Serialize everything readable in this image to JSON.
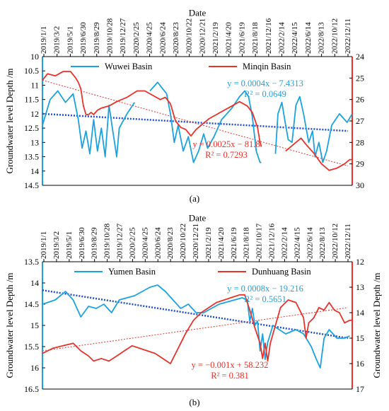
{
  "chart_data": [
    {
      "type": "line",
      "panel_label": "(a)",
      "xlabel": "Date",
      "ylabel_left": "Groundwater level Depth /m",
      "ylabel_right": "",
      "ylim_left": [
        14.5,
        10
      ],
      "ylim_right": [
        30,
        24
      ],
      "y_left_ticks": [
        "10",
        "10.5",
        "11",
        "11.5",
        "12",
        "12.5",
        "13",
        "13.5",
        "14",
        "14.5"
      ],
      "y_right_ticks": [
        "24",
        "25",
        "26",
        "27",
        "28",
        "29",
        "30"
      ],
      "x_ticks": [
        "2019/1/1",
        "2019/3/2",
        "2019/5/1",
        "2019/6/30",
        "2019/8/29",
        "2019/10/28",
        "2019/12/27",
        "2020/2/25",
        "2020/4/25",
        "2020/6/24",
        "2020/8/23",
        "2020/10/22",
        "2020/12/21",
        "2021/2/19",
        "2021/4/20",
        "2021/6/19",
        "2021/8/18",
        "2021/12/16",
        "2022/2/14",
        "2022/4/15",
        "2022/6/14",
        "2022/8/13",
        "2022/10/12",
        "2022/12/11"
      ],
      "legend_position": "top",
      "series": [
        {
          "name": "Wuwei Basin",
          "axis": "left",
          "color": "#1aa3e0",
          "values": [
            [
              0,
              12.4
            ],
            [
              0.3,
              11.5
            ],
            [
              0.6,
              11.2
            ],
            [
              0.9,
              11.6
            ],
            [
              1.2,
              11.3
            ],
            [
              1.4,
              12.2
            ],
            [
              1.55,
              13.2
            ],
            [
              1.7,
              12.6
            ],
            [
              1.85,
              13.4
            ],
            [
              2.0,
              12.2
            ],
            [
              2.15,
              13.3
            ],
            [
              2.3,
              12.5
            ],
            [
              2.45,
              13.5
            ],
            [
              2.6,
              11.7
            ],
            [
              2.75,
              12.6
            ],
            [
              2.9,
              13.5
            ],
            [
              3.0,
              12.5
            ],
            [
              3.3,
              12.0
            ],
            [
              3.6,
              11.6
            ],
            [
              4.2,
              11.2
            ],
            [
              4.5,
              10.9
            ],
            [
              4.85,
              11.3
            ],
            [
              5.0,
              12.0
            ],
            [
              5.15,
              13.0
            ],
            [
              5.3,
              12.4
            ],
            [
              5.5,
              13.3
            ],
            [
              5.7,
              12.8
            ],
            [
              5.9,
              13.7
            ],
            [
              6.1,
              13.3
            ],
            [
              6.3,
              12.7
            ],
            [
              6.45,
              13.2
            ],
            [
              6.7,
              12.8
            ],
            [
              7.0,
              12.2
            ],
            [
              7.4,
              11.8
            ],
            [
              7.7,
              11.4
            ],
            [
              7.9,
              11.2
            ],
            [
              8.05,
              11.4
            ],
            [
              8.2,
              12.1
            ],
            [
              8.35,
              13.3
            ],
            [
              8.5,
              13.7
            ],
            [
              8.55,
              13.7
            ],
            [
              9.1,
              13.4
            ],
            [
              9.2,
              12.0
            ],
            [
              9.35,
              11.6
            ],
            [
              9.5,
              12.4
            ],
            [
              9.6,
              12.9
            ],
            [
              9.75,
              13.0
            ],
            [
              9.9,
              11.7
            ],
            [
              10.05,
              11.4
            ],
            [
              10.2,
              12.0
            ],
            [
              10.4,
              13.0
            ],
            [
              10.55,
              12.6
            ],
            [
              10.65,
              13.5
            ],
            [
              10.8,
              13.0
            ],
            [
              10.95,
              13.7
            ],
            [
              11.1,
              13.3
            ],
            [
              11.3,
              12.4
            ],
            [
              11.6,
              12.0
            ],
            [
              11.9,
              12.3
            ],
            [
              12.1,
              12.0
            ]
          ]
        },
        {
          "name": "Minqin Basin",
          "axis": "right",
          "color": "#e8322a",
          "values": [
            [
              0,
              25.1
            ],
            [
              0.2,
              24.8
            ],
            [
              0.5,
              24.9
            ],
            [
              0.8,
              24.7
            ],
            [
              1.1,
              24.7
            ],
            [
              1.3,
              25.0
            ],
            [
              1.4,
              25.2
            ],
            [
              1.5,
              25.5
            ],
            [
              1.6,
              26.3
            ],
            [
              1.7,
              26.7
            ],
            [
              1.8,
              26.7
            ],
            [
              1.9,
              26.6
            ],
            [
              2.0,
              26.7
            ],
            [
              2.15,
              26.5
            ],
            [
              2.3,
              26.4
            ],
            [
              2.6,
              26.3
            ],
            [
              2.9,
              26.1
            ],
            [
              3.3,
              25.9
            ],
            [
              3.7,
              25.6
            ],
            [
              4.0,
              25.6
            ],
            [
              4.3,
              25.8
            ],
            [
              4.6,
              26.0
            ],
            [
              4.8,
              25.9
            ],
            [
              5.0,
              26.2
            ],
            [
              5.2,
              27.0
            ],
            [
              5.4,
              27.3
            ],
            [
              5.6,
              27.4
            ],
            [
              5.8,
              27.7
            ],
            [
              6.0,
              27.4
            ],
            [
              6.2,
              27.2
            ],
            [
              6.5,
              26.9
            ],
            [
              6.8,
              26.7
            ],
            [
              7.1,
              26.5
            ],
            [
              7.4,
              26.3
            ],
            [
              7.7,
              26.1
            ],
            [
              8.0,
              26.3
            ],
            [
              8.2,
              26.6
            ],
            [
              8.4,
              27.3
            ],
            [
              8.5,
              28.0
            ],
            [
              8.55,
              28.2
            ],
            [
              9.5,
              28.4
            ],
            [
              9.8,
              28.1
            ],
            [
              10.1,
              27.8
            ],
            [
              10.3,
              28.1
            ],
            [
              10.6,
              28.5
            ],
            [
              10.9,
              29.0
            ],
            [
              11.2,
              29.3
            ],
            [
              11.5,
              29.2
            ],
            [
              11.8,
              29.0
            ],
            [
              12.0,
              28.8
            ],
            [
              12.1,
              28.8
            ]
          ]
        }
      ],
      "trendlines": [
        {
          "series": "Wuwei Basin",
          "axis": "left",
          "color": "#1f4ec7",
          "equation": "y = 0.0004x − 7.4313",
          "r2": "R² = 0.0649",
          "y0": 12.0,
          "y1": 12.6
        },
        {
          "series": "Minqin Basin",
          "axis": "right",
          "color": "#e8322a",
          "equation": "y = 0.0025x − 81.8",
          "r2": "R² = 0.7293",
          "y0": 25.1,
          "y1": 29.1
        }
      ]
    },
    {
      "type": "line",
      "panel_label": "(b)",
      "xlabel": "Date",
      "ylabel_left": "Groundwater level Depth /m",
      "ylabel_right": "Groundwater level Depth /m",
      "ylim_left": [
        16.5,
        13.5
      ],
      "ylim_right": [
        17,
        12
      ],
      "y_left_ticks": [
        "13.5",
        "14",
        "14.5",
        "15",
        "15.5",
        "16",
        "16.5"
      ],
      "y_right_ticks": [
        "12",
        "13",
        "14",
        "15",
        "16",
        "17"
      ],
      "x_ticks": [
        "2019/1/1",
        "2019/3/2",
        "2019/5/1",
        "2019/6/30",
        "2019/8/29",
        "2019/10/28",
        "2019/12/27",
        "2020/2/25",
        "2020/4/25",
        "2020/6/24",
        "2020/8/23",
        "2020/10/22",
        "2020/12/21",
        "2021/2/19",
        "2021/4/20",
        "2021/6/19",
        "2021/8/18",
        "2021/10/17",
        "2021/12/16",
        "2022/2/14",
        "2022/4/15",
        "2022/6/14",
        "2022/8/13",
        "2022/10/12",
        "2022/12/11"
      ],
      "legend_position": "top",
      "series": [
        {
          "name": "Yumen Basin",
          "axis": "left",
          "color": "#1aa3e0",
          "values": [
            [
              0,
              14.5
            ],
            [
              0.5,
              14.4
            ],
            [
              0.9,
              14.2
            ],
            [
              1.2,
              14.4
            ],
            [
              1.5,
              14.8
            ],
            [
              1.8,
              14.55
            ],
            [
              2.1,
              14.6
            ],
            [
              2.4,
              14.5
            ],
            [
              2.7,
              14.7
            ],
            [
              3.0,
              14.4
            ],
            [
              3.3,
              14.35
            ],
            [
              3.6,
              14.3
            ],
            [
              3.9,
              14.2
            ],
            [
              4.2,
              14.1
            ],
            [
              4.5,
              14.05
            ],
            [
              4.8,
              14.2
            ],
            [
              5.1,
              14.4
            ],
            [
              5.4,
              14.6
            ],
            [
              5.7,
              14.5
            ],
            [
              6.0,
              14.7
            ],
            [
              6.3,
              14.7
            ],
            [
              6.6,
              14.6
            ],
            [
              6.9,
              14.5
            ],
            [
              7.2,
              14.45
            ],
            [
              7.5,
              14.4
            ],
            [
              7.8,
              14.35
            ],
            [
              8.0,
              14.4
            ],
            [
              8.1,
              14.9
            ],
            [
              8.2,
              14.6
            ],
            [
              8.3,
              15.0
            ],
            [
              8.4,
              14.9
            ],
            [
              8.5,
              15.6
            ],
            [
              8.6,
              15.2
            ],
            [
              8.7,
              15.8
            ],
            [
              8.8,
              15.4
            ],
            [
              8.9,
              15.2
            ],
            [
              9.0,
              15.0
            ],
            [
              9.5,
              15.2
            ],
            [
              9.9,
              15.1
            ],
            [
              10.2,
              15.2
            ],
            [
              10.5,
              15.5
            ],
            [
              10.7,
              15.8
            ],
            [
              10.85,
              16.0
            ],
            [
              11.0,
              15.3
            ],
            [
              11.2,
              15.1
            ],
            [
              11.5,
              15.3
            ],
            [
              11.8,
              15.3
            ],
            [
              12.0,
              15.25
            ]
          ]
        },
        {
          "name": "Dunhuang Basin",
          "axis": "right",
          "color": "#e8322a",
          "values": [
            [
              0,
              15.6
            ],
            [
              0.4,
              15.4
            ],
            [
              0.8,
              15.3
            ],
            [
              1.2,
              15.2
            ],
            [
              1.5,
              15.5
            ],
            [
              1.8,
              15.7
            ],
            [
              2.0,
              15.9
            ],
            [
              2.3,
              15.8
            ],
            [
              2.6,
              15.9
            ],
            [
              2.9,
              15.7
            ],
            [
              3.2,
              15.5
            ],
            [
              3.5,
              15.3
            ],
            [
              3.8,
              15.4
            ],
            [
              4.1,
              15.5
            ],
            [
              4.4,
              15.6
            ],
            [
              4.7,
              15.8
            ],
            [
              5.0,
              16.0
            ],
            [
              5.2,
              15.6
            ],
            [
              5.4,
              15.2
            ],
            [
              5.6,
              14.8
            ],
            [
              5.9,
              14.3
            ],
            [
              6.2,
              14.0
            ],
            [
              6.5,
              13.8
            ],
            [
              6.8,
              13.6
            ],
            [
              7.1,
              13.5
            ],
            [
              7.4,
              13.4
            ],
            [
              7.7,
              13.3
            ],
            [
              7.9,
              13.3
            ],
            [
              8.1,
              13.9
            ],
            [
              8.3,
              14.6
            ],
            [
              8.5,
              15.2
            ],
            [
              8.6,
              15.8
            ],
            [
              8.7,
              15.2
            ],
            [
              8.8,
              15.9
            ],
            [
              8.9,
              15.2
            ],
            [
              9.3,
              13.8
            ],
            [
              9.6,
              13.5
            ],
            [
              9.9,
              13.6
            ],
            [
              10.2,
              14.2
            ],
            [
              10.3,
              15.0
            ],
            [
              10.4,
              14.4
            ],
            [
              10.6,
              14.2
            ],
            [
              10.8,
              13.8
            ],
            [
              11.0,
              13.9
            ],
            [
              11.2,
              13.6
            ],
            [
              11.4,
              13.9
            ],
            [
              11.6,
              14.0
            ],
            [
              11.8,
              14.4
            ],
            [
              12.0,
              14.3
            ],
            [
              12.1,
              14.3
            ]
          ]
        }
      ],
      "trendlines": [
        {
          "series": "Yumen Basin",
          "axis": "left",
          "color": "#1f4ec7",
          "equation": "y = 0.0008x − 19.216",
          "r2": "R² = 0.5651",
          "y0": 14.17,
          "y1": 15.3
        },
        {
          "series": "Dunhuang Basin",
          "axis": "right",
          "color": "#e8322a",
          "equation": "y = −0.001x + 58.232",
          "r2": "R² = 0.381",
          "y0": 15.5,
          "y1": 13.8
        }
      ]
    }
  ]
}
